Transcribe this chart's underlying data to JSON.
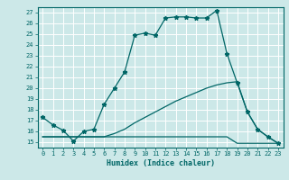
{
  "title": "",
  "xlabel": "Humidex (Indice chaleur)",
  "ylabel": "",
  "bg_color": "#cce8e8",
  "line_color": "#006666",
  "grid_color": "#ffffff",
  "ylim": [
    14.5,
    27.5
  ],
  "xlim": [
    -0.5,
    23.5
  ],
  "yticks": [
    15,
    16,
    17,
    18,
    19,
    20,
    21,
    22,
    23,
    24,
    25,
    26,
    27
  ],
  "xticks": [
    0,
    1,
    2,
    3,
    4,
    5,
    6,
    7,
    8,
    9,
    10,
    11,
    12,
    13,
    14,
    15,
    16,
    17,
    18,
    19,
    20,
    21,
    22,
    23
  ],
  "line1_x": [
    0,
    1,
    2,
    3,
    4,
    5,
    6,
    7,
    8,
    9,
    10,
    11,
    12,
    13,
    14,
    15,
    16,
    17,
    18,
    19,
    20,
    21,
    22,
    23
  ],
  "line1_y": [
    17.3,
    16.6,
    16.1,
    15.1,
    16.0,
    16.2,
    18.5,
    20.0,
    21.5,
    24.9,
    25.1,
    24.9,
    26.5,
    26.6,
    26.6,
    26.5,
    26.5,
    27.2,
    23.2,
    20.5,
    17.8,
    16.2,
    15.5,
    14.9
  ],
  "line2_x": [
    0,
    1,
    2,
    3,
    4,
    5,
    6,
    7,
    8,
    9,
    10,
    11,
    12,
    13,
    14,
    15,
    16,
    17,
    18,
    19,
    20,
    21,
    22,
    23
  ],
  "line2_y": [
    15.5,
    15.5,
    15.5,
    15.5,
    15.5,
    15.5,
    15.5,
    15.8,
    16.2,
    16.8,
    17.3,
    17.8,
    18.3,
    18.8,
    19.2,
    19.6,
    20.0,
    20.3,
    20.5,
    20.6,
    17.8,
    16.2,
    15.5,
    14.9
  ],
  "line3_x": [
    0,
    1,
    2,
    3,
    4,
    5,
    6,
    7,
    8,
    9,
    10,
    11,
    12,
    13,
    14,
    15,
    16,
    17,
    18,
    19,
    20,
    21,
    22,
    23
  ],
  "line3_y": [
    15.5,
    15.5,
    15.5,
    15.5,
    15.5,
    15.5,
    15.5,
    15.5,
    15.5,
    15.5,
    15.5,
    15.5,
    15.5,
    15.5,
    15.5,
    15.5,
    15.5,
    15.5,
    15.5,
    14.9,
    14.9,
    14.9,
    14.9,
    14.9
  ]
}
